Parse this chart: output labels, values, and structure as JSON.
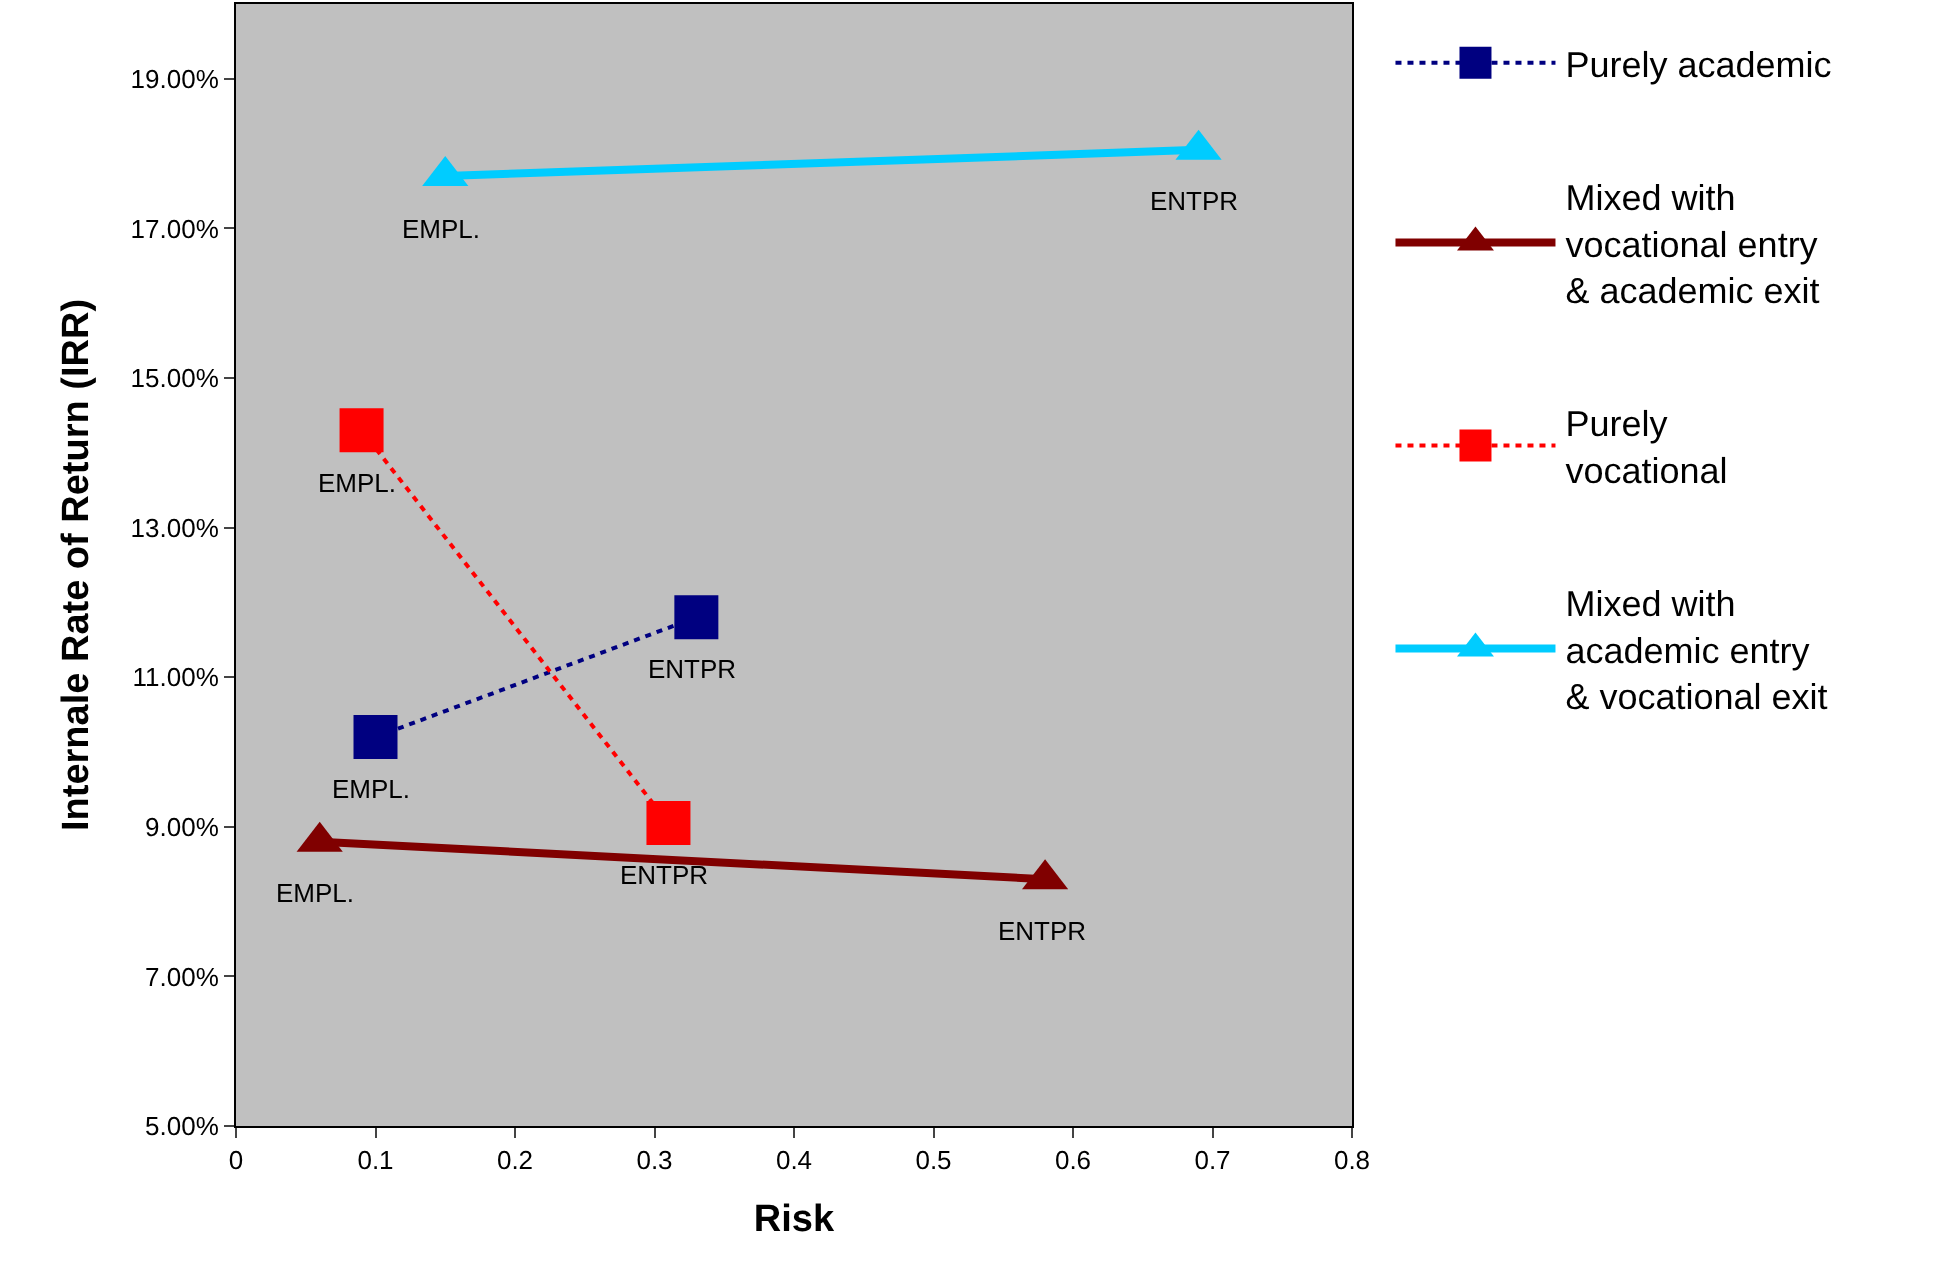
{
  "chart_data": {
    "type": "line",
    "xlabel": "Risk",
    "ylabel": "Internale Rate of Return (IRR)",
    "xlim": [
      0,
      0.8
    ],
    "xticks": [
      0,
      0.1,
      0.2,
      0.3,
      0.4,
      0.5,
      0.6,
      0.7,
      0.8
    ],
    "ylim": [
      5,
      20
    ],
    "yticks": [
      {
        "value": 5,
        "label": "5.00%"
      },
      {
        "value": 7,
        "label": "7.00%"
      },
      {
        "value": 9,
        "label": "9.00%"
      },
      {
        "value": 11,
        "label": "11.00%"
      },
      {
        "value": 13,
        "label": "13.00%"
      },
      {
        "value": 15,
        "label": "15.00%"
      },
      {
        "value": 17,
        "label": "17.00%"
      },
      {
        "value": 19,
        "label": "19.00%"
      }
    ],
    "grid": false,
    "legend": "right",
    "series": [
      {
        "name": "Purely academic",
        "color": "#000080",
        "marker": "square",
        "line_style": "dotted",
        "x": [
          0.1,
          0.33
        ],
        "values": [
          10.2,
          11.8
        ]
      },
      {
        "name": "Mixed with\nvocational entry\n& academic exit",
        "color": "#800000",
        "marker": "triangle",
        "line_style": "solid",
        "x": [
          0.06,
          0.58
        ],
        "values": [
          8.8,
          8.3
        ]
      },
      {
        "name": "Purely\nvocational",
        "color": "#ff0000",
        "marker": "square",
        "line_style": "dotted",
        "x": [
          0.09,
          0.31
        ],
        "values": [
          14.3,
          9.05
        ]
      },
      {
        "name": "Mixed with\nacademic entry\n& vocational exit",
        "color": "#00ccff",
        "marker": "triangle",
        "line_style": "solid",
        "x": [
          0.15,
          0.69
        ],
        "values": [
          17.7,
          18.05
        ]
      }
    ],
    "annotations": [
      {
        "text": "EMPL.",
        "x": 0.1,
        "y": 10.2
      },
      {
        "text": "ENTPR",
        "x": 0.33,
        "y": 11.8
      },
      {
        "text": "EMPL.",
        "x": 0.06,
        "y": 8.8
      },
      {
        "text": "ENTPR",
        "x": 0.58,
        "y": 8.3
      },
      {
        "text": "EMPL.",
        "x": 0.09,
        "y": 14.3
      },
      {
        "text": "ENTPR",
        "x": 0.31,
        "y": 9.05
      },
      {
        "text": "EMPL.",
        "x": 0.15,
        "y": 17.7
      },
      {
        "text": "ENTPR",
        "x": 0.69,
        "y": 18.05
      }
    ]
  }
}
